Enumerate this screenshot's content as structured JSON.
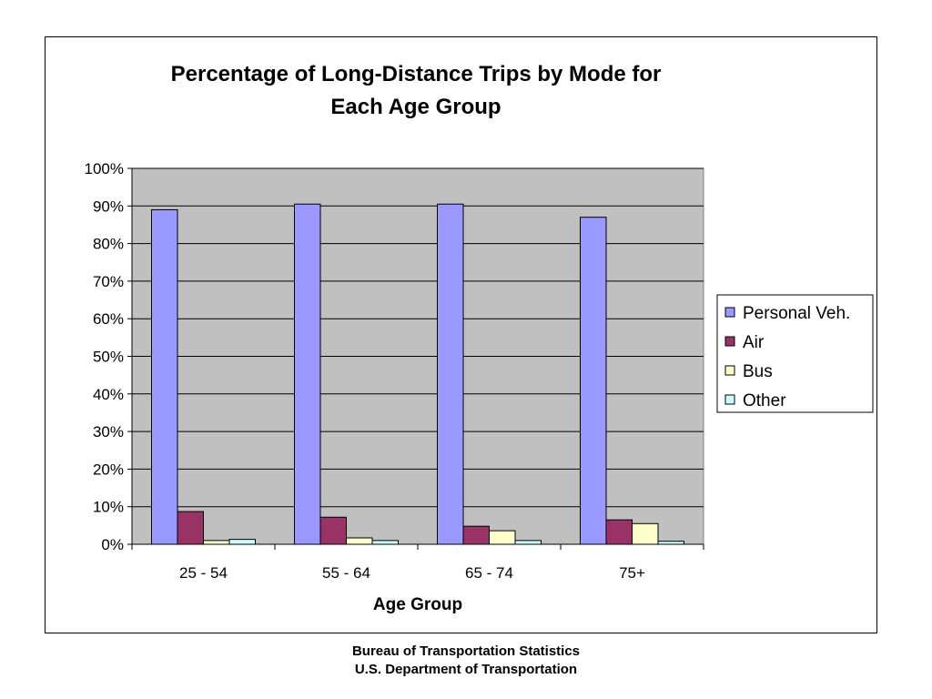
{
  "chart_data": {
    "type": "bar",
    "title_lines": [
      "Percentage of Long-Distance Trips by Mode for",
      "Each Age Group"
    ],
    "xlabel": "Age Group",
    "ylabel": "",
    "categories": [
      "25 - 54",
      "55 - 64",
      "65 - 74",
      "75+"
    ],
    "series": [
      {
        "name": "Personal Veh.",
        "color": "#9999ff",
        "values": [
          89,
          90.5,
          90.5,
          87
        ]
      },
      {
        "name": "Air",
        "color": "#993366",
        "values": [
          8.7,
          7.2,
          4.8,
          6.5
        ]
      },
      {
        "name": "Bus",
        "color": "#ffffcc",
        "values": [
          1,
          1.7,
          3.6,
          5.5
        ]
      },
      {
        "name": "Other",
        "color": "#ccffff",
        "values": [
          1.3,
          1,
          1,
          0.8
        ]
      }
    ],
    "ylim": [
      0,
      100
    ],
    "yticks": [
      "0%",
      "10%",
      "20%",
      "30%",
      "40%",
      "50%",
      "60%",
      "70%",
      "80%",
      "90%",
      "100%"
    ],
    "grid": true,
    "plot_background": "#c0c0c0",
    "legend_position": "right"
  },
  "footer": {
    "line1": "Bureau of Transportation Statistics",
    "line2": "U.S. Department of Transportation"
  }
}
